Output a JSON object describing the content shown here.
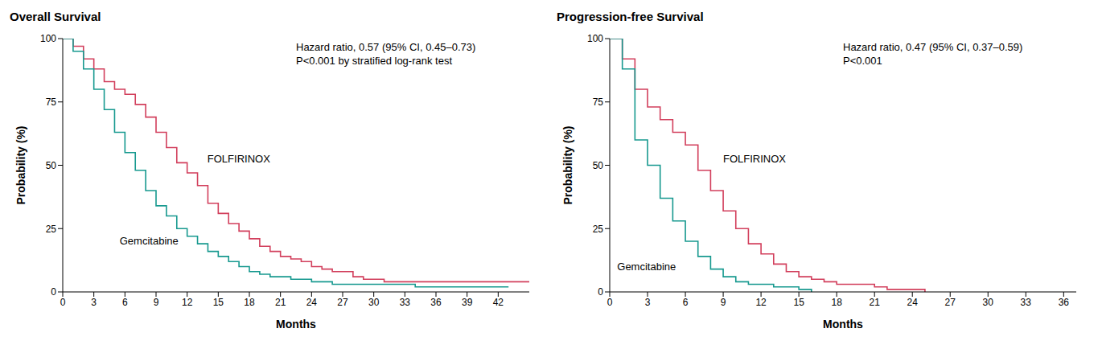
{
  "chart_data": [
    {
      "type": "line",
      "title": "Overall Survival",
      "x_label": "Months",
      "y_label": "Probability (%)",
      "annotations": [
        "Hazard ratio, 0.57 (95% CI, 0.45–0.73)",
        "P<0.001 by stratified log-rank test"
      ],
      "line_style": "step",
      "grid": false,
      "xlim": [
        0,
        45
      ],
      "xticks": [
        0,
        3,
        6,
        9,
        12,
        15,
        18,
        21,
        24,
        27,
        30,
        33,
        36,
        39,
        42
      ],
      "ylim": [
        0,
        100
      ],
      "yticks": [
        0,
        25,
        50,
        75,
        100
      ],
      "x": [
        0,
        1,
        2,
        3,
        4,
        5,
        6,
        7,
        8,
        9,
        10,
        11,
        12,
        13,
        14,
        15,
        16,
        17,
        18,
        19,
        20,
        21,
        22,
        23,
        24,
        25,
        26,
        27,
        28,
        29,
        30,
        31,
        32,
        33,
        34,
        35,
        36,
        37,
        38,
        39,
        40,
        41,
        42,
        43,
        44,
        45
      ],
      "series": [
        {
          "name": "FOLFIRINOX",
          "color": "#d23f5c",
          "values": [
            100,
            97,
            92,
            88,
            83,
            80,
            78,
            74,
            69,
            63,
            57,
            51,
            47,
            42,
            35,
            31,
            27,
            24,
            21,
            18,
            16,
            14,
            13,
            12,
            10,
            9,
            8,
            8,
            6,
            5,
            5,
            4,
            4,
            4,
            4,
            4,
            4,
            4,
            4,
            4,
            4,
            4,
            4,
            4,
            4,
            4
          ]
        },
        {
          "name": "Gemcitabine",
          "color": "#17998f",
          "values": [
            100,
            95,
            88,
            80,
            72,
            63,
            55,
            48,
            40,
            34,
            30,
            25,
            22,
            19,
            16,
            14,
            12,
            10,
            8,
            7,
            6,
            6,
            5,
            5,
            4,
            4,
            3,
            3,
            3,
            3,
            3,
            3,
            3,
            3,
            2,
            2,
            2,
            2,
            2,
            2,
            2,
            2,
            2,
            2,
            null,
            null
          ]
        }
      ]
    },
    {
      "type": "line",
      "title": "Progression-free Survival",
      "x_label": "Months",
      "y_label": "Probability (%)",
      "annotations": [
        "Hazard ratio, 0.47 (95% CI, 0.37–0.59)",
        "P<0.001"
      ],
      "line_style": "step",
      "grid": false,
      "xlim": [
        0,
        37
      ],
      "xticks": [
        0,
        3,
        6,
        9,
        12,
        15,
        18,
        21,
        24,
        27,
        30,
        33,
        36
      ],
      "ylim": [
        0,
        100
      ],
      "yticks": [
        0,
        25,
        50,
        75,
        100
      ],
      "x": [
        0,
        1,
        2,
        3,
        4,
        5,
        6,
        7,
        8,
        9,
        10,
        11,
        12,
        13,
        14,
        15,
        16,
        17,
        18,
        19,
        20,
        21,
        22,
        23,
        24,
        25
      ],
      "series": [
        {
          "name": "FOLFIRINOX",
          "color": "#d23f5c",
          "values": [
            100,
            92,
            80,
            73,
            68,
            63,
            58,
            48,
            40,
            32,
            25,
            19,
            15,
            11,
            8,
            6,
            5,
            4,
            3,
            3,
            3,
            2,
            1,
            1,
            1,
            0
          ]
        },
        {
          "name": "Gemcitabine",
          "color": "#17998f",
          "values": [
            100,
            88,
            60,
            50,
            37,
            28,
            20,
            14,
            9,
            6,
            4,
            3,
            3,
            2,
            2,
            1,
            0,
            null,
            null,
            null,
            null,
            null,
            null,
            null,
            null,
            null
          ]
        }
      ]
    }
  ]
}
